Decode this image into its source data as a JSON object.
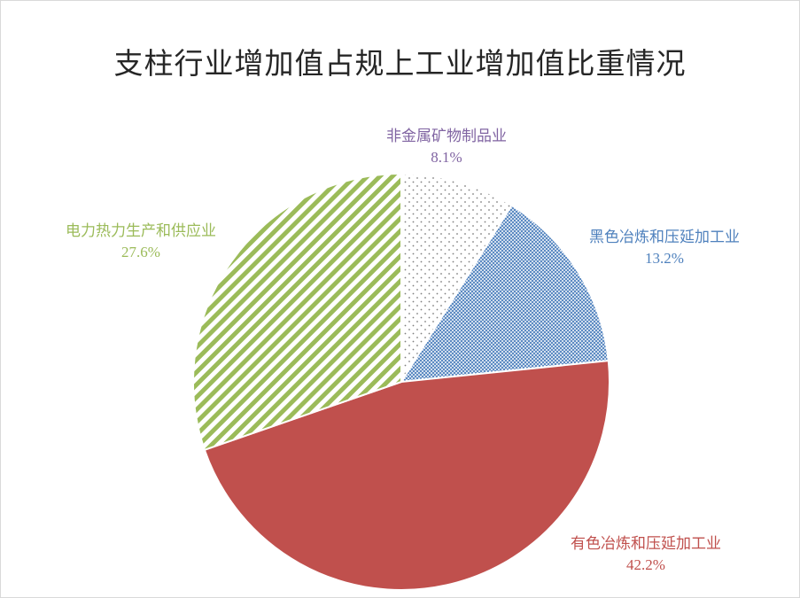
{
  "chart_data": {
    "type": "pie",
    "title": "支柱行业增加值占规上工业增加值比重情况",
    "unit": "%",
    "slices": [
      {
        "label": "非金属矿物制品业",
        "value": 8.1,
        "value_label": "8.1%",
        "color": "#8064A2",
        "fill": "dots"
      },
      {
        "label": "黑色冶炼和压延加工业",
        "value": 13.2,
        "value_label": "13.2%",
        "color": "#4F81BD",
        "fill": "crosshatch"
      },
      {
        "label": "有色冶炼和压延加工业",
        "value": 42.2,
        "value_label": "42.2%",
        "color": "#C0504D",
        "fill": "solid"
      },
      {
        "label": "电力热力生产和供应业",
        "value": 27.6,
        "value_label": "27.6%",
        "color": "#9BBB59",
        "fill": "diagonal-stripes"
      }
    ],
    "start_angle": "12 o'clock",
    "direction": "clockwise",
    "legend": "none",
    "data_labels": "outside"
  }
}
